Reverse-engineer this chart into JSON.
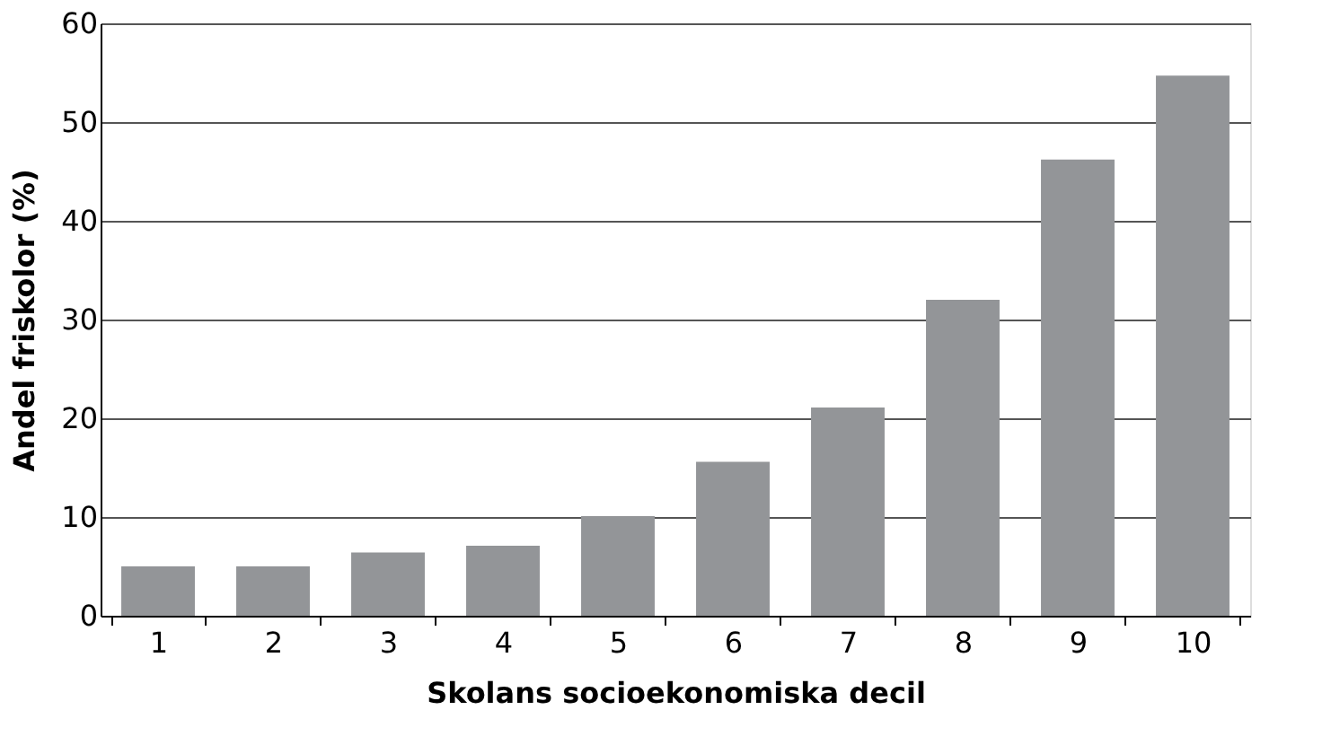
{
  "chart_data": {
    "type": "bar",
    "xlabel": "Skolans socioekonomiska decil",
    "ylabel": "Andel friskolor (%)",
    "categories": [
      "1",
      "2",
      "3",
      "4",
      "5",
      "6",
      "7",
      "8",
      "9",
      "10"
    ],
    "values": [
      5.0,
      5.0,
      6.4,
      7.1,
      10.1,
      15.6,
      21.1,
      32.0,
      46.2,
      54.7
    ],
    "color": "#939598",
    "ylim": [
      0,
      60
    ],
    "yticks": [
      0,
      10,
      20,
      30,
      40,
      50,
      60
    ],
    "grid": "y"
  }
}
